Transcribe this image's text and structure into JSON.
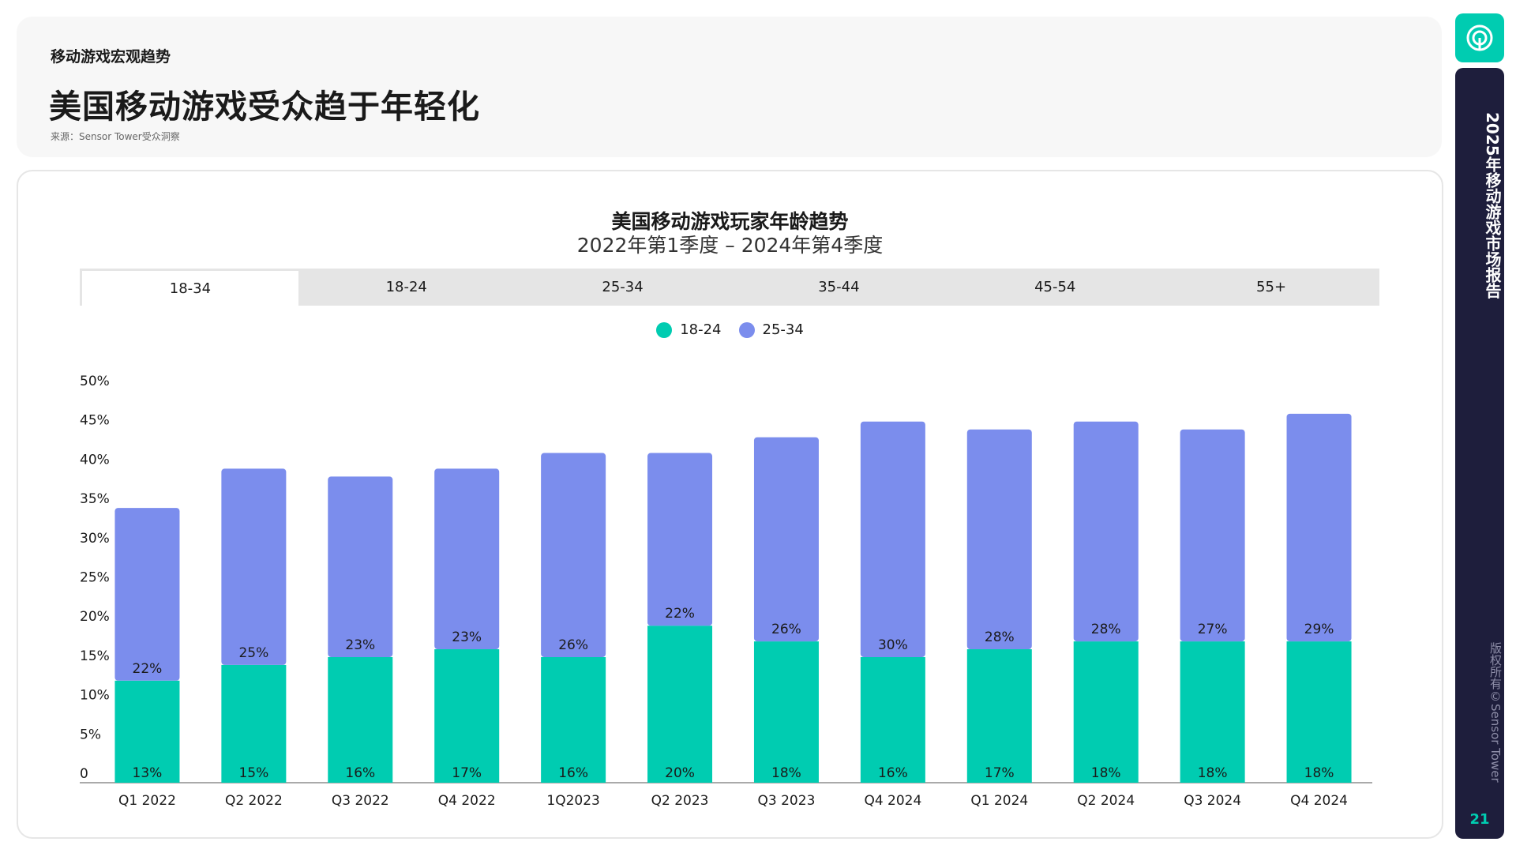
{
  "header": {
    "section_label": "移动游戏宏观趋势",
    "title": "美国移动游戏受众趋于年轻化",
    "source": "来源：Sensor Tower受众洞察"
  },
  "chart": {
    "title": "美国移动游戏玩家年龄趋势",
    "subtitle": "2022年第1季度 – 2024年第4季度",
    "tabs": [
      "18-34",
      "18-24",
      "25-34",
      "35-44",
      "45-54",
      "55+"
    ],
    "active_tab": "18-34"
  },
  "colors": {
    "series1": "#00ccb1",
    "series2": "#7b8ded",
    "accent": "#00ccb1",
    "sidebar": "#1e1e3c"
  },
  "chart_data": {
    "type": "bar",
    "stacked": true,
    "categories": [
      "Q1 2022",
      "Q2 2022",
      "Q3 2022",
      "Q4 2022",
      "1Q2023",
      "Q2 2023",
      "Q3 2023",
      "Q4 2024",
      "Q1 2024",
      "Q2 2024",
      "Q3 2024",
      "Q4 2024"
    ],
    "series": [
      {
        "name": "18-24",
        "values": [
          13,
          15,
          16,
          17,
          16,
          20,
          18,
          16,
          17,
          18,
          18,
          18
        ],
        "labels": [
          "13%",
          "15%",
          "16%",
          "17%",
          "16%",
          "20%",
          "18%",
          "16%",
          "17%",
          "18%",
          "18%",
          "18%"
        ]
      },
      {
        "name": "25-34",
        "values": [
          22,
          25,
          23,
          23,
          26,
          22,
          26,
          30,
          28,
          28,
          27,
          29
        ],
        "labels": [
          "22%",
          "25%",
          "23%",
          "23%",
          "26%",
          "22%",
          "26%",
          "30%",
          "28%",
          "28%",
          "27%",
          "29%"
        ]
      }
    ],
    "ylim": [
      0,
      50
    ],
    "yticks": [
      "0",
      "5%",
      "10%",
      "15%",
      "20%",
      "25%",
      "30%",
      "35%",
      "40%",
      "45%",
      "50%"
    ],
    "legend_position": "top-center",
    "grid": false
  },
  "sidebar": {
    "report_title": "2025年移动游戏市场报告",
    "copyright": "版权所有©Sensor Tower",
    "page_number": "21"
  }
}
